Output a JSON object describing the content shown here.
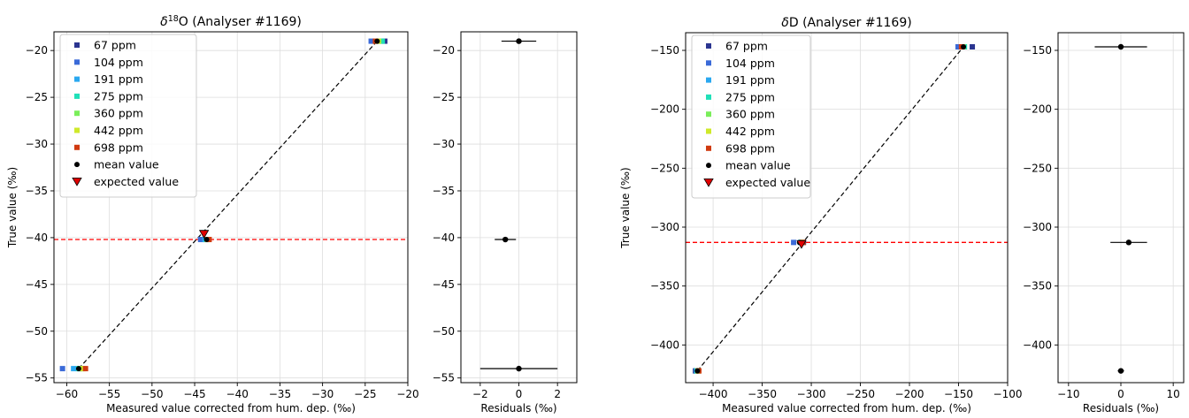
{
  "colors": {
    "ppm_67": "#2b3590",
    "ppm_104": "#3a6ad8",
    "ppm_191": "#2aa8f0",
    "ppm_275": "#20e0b8",
    "ppm_360": "#7aee5a",
    "ppm_442": "#cfe92a",
    "ppm_698": "#d03a10",
    "mean": "#000000",
    "expected": "#e00000",
    "ref_line": "#ff0000",
    "grid": "#dddddd"
  },
  "chart_data": [
    {
      "id": "d18O_main",
      "type": "scatter",
      "title_prefix": "δ",
      "title_sup": "18",
      "title_suffix": "O (Analyser #1169)",
      "xlabel": "Measured value corrected from hum. dep. (‰)",
      "ylabel": "True value (‰)",
      "xlim": [
        -61.5,
        -20
      ],
      "ylim": [
        -55.5,
        -18
      ],
      "xticks": [
        -60,
        -55,
        -50,
        -45,
        -40,
        -35,
        -30,
        -25,
        -20
      ],
      "yticks": [
        -55,
        -50,
        -45,
        -40,
        -35,
        -30,
        -25,
        -20
      ],
      "grid": true,
      "legend_position": "top-left",
      "legend": [
        "67 ppm",
        "104 ppm",
        "191 ppm",
        "275 ppm",
        "360 ppm",
        "442 ppm",
        "698 ppm",
        "mean value",
        "expected value"
      ],
      "series": [
        {
          "name": "67 ppm",
          "points": [
            [
              -22.7,
              -19.0
            ],
            [
              -43.7,
              -40.2
            ],
            [
              -58.5,
              -54.0
            ]
          ]
        },
        {
          "name": "104 ppm",
          "points": [
            [
              -24.3,
              -19.0
            ],
            [
              -44.3,
              -40.2
            ],
            [
              -60.5,
              -54.0
            ]
          ]
        },
        {
          "name": "191 ppm",
          "points": [
            [
              -23.2,
              -19.0
            ],
            [
              -43.8,
              -40.2
            ],
            [
              -59.2,
              -54.0
            ]
          ]
        },
        {
          "name": "275 ppm",
          "points": [
            [
              -23.0,
              -19.0
            ],
            [
              -43.6,
              -40.2
            ],
            [
              -58.6,
              -54.0
            ]
          ]
        },
        {
          "name": "360 ppm",
          "points": [
            [
              -23.4,
              -19.0
            ],
            [
              -43.4,
              -40.2
            ],
            [
              -58.3,
              -54.0
            ]
          ]
        },
        {
          "name": "442 ppm",
          "points": [
            [
              -23.5,
              -19.0
            ],
            [
              -43.5,
              -40.2
            ],
            [
              -58.1,
              -54.0
            ]
          ]
        },
        {
          "name": "698 ppm",
          "points": [
            [
              -23.8,
              -19.0
            ],
            [
              -43.3,
              -40.2
            ],
            [
              -57.8,
              -54.0
            ]
          ]
        },
        {
          "name": "mean value",
          "points": [
            [
              -23.6,
              -19.0
            ],
            [
              -43.6,
              -40.2
            ],
            [
              -58.6,
              -54.0
            ]
          ]
        },
        {
          "name": "expected value",
          "points": [
            [
              -43.9,
              -39.6
            ]
          ]
        }
      ],
      "fit_line": [
        [
          -58.6,
          -54.0
        ],
        [
          -23.6,
          -19.0
        ]
      ],
      "reference_line_y": -40.2
    },
    {
      "id": "d18O_resid",
      "type": "scatter",
      "xlabel": "Residuals (‰)",
      "xlim": [
        -3,
        3
      ],
      "ylim": [
        -55.5,
        -18
      ],
      "xticks": [
        -2,
        0,
        2
      ],
      "yticks": [
        -55,
        -50,
        -45,
        -40,
        -35,
        -30,
        -25,
        -20
      ],
      "grid": true,
      "points": [
        {
          "x": 0.0,
          "y": -19.0,
          "err": 0.9
        },
        {
          "x": -0.7,
          "y": -40.2,
          "err": 0.55
        },
        {
          "x": 0.0,
          "y": -54.0,
          "err": 2.0
        }
      ]
    },
    {
      "id": "dD_main",
      "type": "scatter",
      "title_prefix": "δ",
      "title_sup": "",
      "title_suffix": "D (Analyser #1169)",
      "xlabel": "Measured value corrected from hum. dep. (‰)",
      "ylabel": "True value (‰)",
      "xlim": [
        -428,
        -100
      ],
      "ylim": [
        -432,
        -135
      ],
      "xticks": [
        -400,
        -350,
        -300,
        -250,
        -200,
        -150,
        -100
      ],
      "yticks": [
        -400,
        -350,
        -300,
        -250,
        -200,
        -150
      ],
      "grid": true,
      "legend_position": "top-left",
      "legend": [
        "67 ppm",
        "104 ppm",
        "191 ppm",
        "275 ppm",
        "360 ppm",
        "442 ppm",
        "698 ppm",
        "mean value",
        "expected value"
      ],
      "series": [
        {
          "name": "67 ppm",
          "points": [
            [
              -136.0,
              -147.0
            ],
            [
              -308.0,
              -313.0
            ],
            [
              -418.0,
              -422.0
            ]
          ]
        },
        {
          "name": "104 ppm",
          "points": [
            [
              -150.5,
              -147.0
            ],
            [
              -318.0,
              -313.0
            ],
            [
              -416.5,
              -422.0
            ]
          ]
        },
        {
          "name": "191 ppm",
          "points": [
            [
              -145.0,
              -147.0
            ],
            [
              -311.0,
              -313.0
            ],
            [
              -417.0,
              -422.0
            ]
          ]
        },
        {
          "name": "275 ppm",
          "points": [
            [
              -144.0,
              -147.0
            ],
            [
              -310.0,
              -313.0
            ],
            [
              -416.0,
              -422.0
            ]
          ]
        },
        {
          "name": "360 ppm",
          "points": [
            [
              -145.5,
              -147.0
            ],
            [
              -309.5,
              -313.0
            ],
            [
              -415.5,
              -422.0
            ]
          ]
        },
        {
          "name": "442 ppm",
          "points": [
            [
              -146.0,
              -147.0
            ],
            [
              -309.0,
              -313.0
            ],
            [
              -415.0,
              -422.0
            ]
          ]
        },
        {
          "name": "698 ppm",
          "points": [
            [
              -147.0,
              -147.0
            ],
            [
              -308.5,
              -313.0
            ],
            [
              -414.5,
              -422.0
            ]
          ]
        },
        {
          "name": "mean value",
          "points": [
            [
              -145.0,
              -147.0
            ],
            [
              -312.0,
              -313.0
            ],
            [
              -416.0,
              -422.0
            ]
          ]
        },
        {
          "name": "expected value",
          "points": [
            [
              -310.0,
              -314.5
            ]
          ]
        }
      ],
      "fit_line": [
        [
          -416.0,
          -422.0
        ],
        [
          -145.0,
          -147.0
        ]
      ],
      "reference_line_y": -313.0
    },
    {
      "id": "dD_resid",
      "type": "scatter",
      "xlabel": "Residuals (‰)",
      "xlim": [
        -12,
        12
      ],
      "ylim": [
        -432,
        -135
      ],
      "xticks": [
        -10,
        0,
        10
      ],
      "yticks": [
        -400,
        -350,
        -300,
        -250,
        -200,
        -150
      ],
      "grid": true,
      "points": [
        {
          "x": 0.0,
          "y": -147.0,
          "err": 5.0
        },
        {
          "x": 1.5,
          "y": -313.0,
          "err": 3.5
        },
        {
          "x": 0.0,
          "y": -422.0,
          "err": 0.6
        }
      ]
    }
  ]
}
